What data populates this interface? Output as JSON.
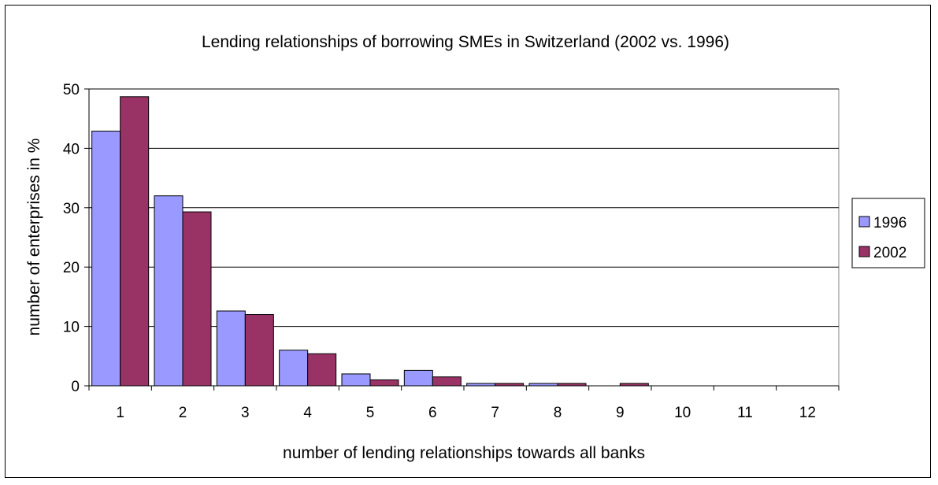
{
  "chart_data": {
    "type": "bar",
    "title": "Lending relationships of borrowing SMEs in Switzerland (2002 vs. 1996)",
    "xlabel": "number of lending relationships towards all banks",
    "ylabel": "number of enterprises in %",
    "categories": [
      "1",
      "2",
      "3",
      "4",
      "5",
      "6",
      "7",
      "8",
      "9",
      "10",
      "11",
      "12"
    ],
    "ylim": [
      0,
      50
    ],
    "yticks": [
      "0",
      "10",
      "20",
      "30",
      "40",
      "50"
    ],
    "grid": true,
    "legend_position": "right",
    "series": [
      {
        "name": "1996",
        "color": "#9999ff",
        "values": [
          42.9,
          32.0,
          12.6,
          6.0,
          2.0,
          2.6,
          0.4,
          0.4,
          0,
          0,
          0,
          0
        ]
      },
      {
        "name": "2002",
        "color": "#993366",
        "values": [
          48.7,
          29.3,
          12.0,
          5.4,
          1.0,
          1.5,
          0.4,
          0.4,
          0.4,
          0,
          0,
          0
        ]
      }
    ]
  }
}
